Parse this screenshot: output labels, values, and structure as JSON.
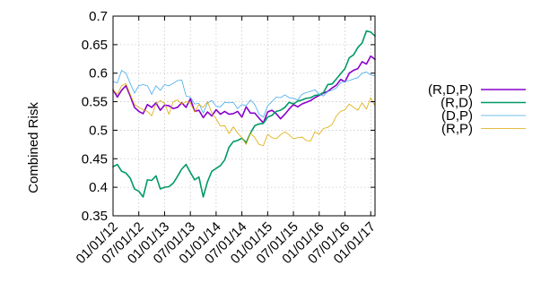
{
  "chart_data": {
    "type": "line",
    "title": "",
    "xlabel": "",
    "ylabel": "Combined Risk",
    "ylim": [
      0.35,
      0.7
    ],
    "yticks": [
      0.35,
      0.4,
      0.45,
      0.5,
      0.55,
      0.6,
      0.65,
      0.7
    ],
    "ytick_labels": [
      "0.35",
      "0.4",
      "0.45",
      "0.5",
      "0.55",
      "0.6",
      "0.65",
      "0.7"
    ],
    "x": [
      "2012-01",
      "2012-02",
      "2012-03",
      "2012-04",
      "2012-05",
      "2012-06",
      "2012-07",
      "2012-08",
      "2012-09",
      "2012-10",
      "2012-11",
      "2012-12",
      "2013-01",
      "2013-02",
      "2013-03",
      "2013-04",
      "2013-05",
      "2013-06",
      "2013-07",
      "2013-08",
      "2013-09",
      "2013-10",
      "2013-11",
      "2013-12",
      "2014-01",
      "2014-02",
      "2014-03",
      "2014-04",
      "2014-05",
      "2014-06",
      "2014-07",
      "2014-08",
      "2014-09",
      "2014-10",
      "2014-11",
      "2014-12",
      "2015-01",
      "2015-02",
      "2015-03",
      "2015-04",
      "2015-05",
      "2015-06",
      "2015-07",
      "2015-08",
      "2015-09",
      "2015-10",
      "2015-11",
      "2015-12",
      "2016-01",
      "2016-02",
      "2016-03",
      "2016-04",
      "2016-05",
      "2016-06",
      "2016-07",
      "2016-08",
      "2016-09",
      "2016-10",
      "2016-11",
      "2016-12",
      "2017-01",
      "2017-02"
    ],
    "xlim": [
      "2012-01",
      "2017-02"
    ],
    "xticks": [
      "2012-01",
      "2012-07",
      "2013-01",
      "2013-07",
      "2014-01",
      "2014-07",
      "2015-01",
      "2015-07",
      "2016-01",
      "2016-07",
      "2017-01"
    ],
    "xtick_labels": [
      "01/01/12",
      "07/01/12",
      "01/01/13",
      "07/01/13",
      "01/01/14",
      "07/01/14",
      "01/01/15",
      "07/01/15",
      "01/01/16",
      "07/01/16",
      "01/01/17"
    ],
    "grid": true,
    "legend_position": "right",
    "series": [
      {
        "name": "(R,D,P)",
        "color": "#8800cc",
        "width": 1.6,
        "values": [
          0.571,
          0.558,
          0.57,
          0.578,
          0.56,
          0.54,
          0.533,
          0.529,
          0.545,
          0.54,
          0.548,
          0.535,
          0.544,
          0.543,
          0.538,
          0.54,
          0.548,
          0.54,
          0.555,
          0.533,
          0.535,
          0.522,
          0.532,
          0.525,
          0.536,
          0.528,
          0.533,
          0.528,
          0.529,
          0.533,
          0.523,
          0.541,
          0.53,
          0.53,
          0.521,
          0.513,
          0.532,
          0.535,
          0.529,
          0.52,
          0.528,
          0.537,
          0.545,
          0.541,
          0.546,
          0.549,
          0.552,
          0.557,
          0.561,
          0.565,
          0.568,
          0.574,
          0.579,
          0.589,
          0.585,
          0.6,
          0.605,
          0.608,
          0.62,
          0.616,
          0.63,
          0.624
        ]
      },
      {
        "name": "(R,D)",
        "color": "#009966",
        "width": 1.6,
        "values": [
          0.436,
          0.44,
          0.428,
          0.425,
          0.416,
          0.397,
          0.393,
          0.383,
          0.413,
          0.412,
          0.42,
          0.397,
          0.4,
          0.401,
          0.407,
          0.419,
          0.432,
          0.44,
          0.426,
          0.413,
          0.418,
          0.383,
          0.41,
          0.428,
          0.433,
          0.438,
          0.448,
          0.47,
          0.48,
          0.482,
          0.486,
          0.478,
          0.495,
          0.508,
          0.511,
          0.512,
          0.523,
          0.526,
          0.533,
          0.535,
          0.54,
          0.549,
          0.546,
          0.551,
          0.553,
          0.556,
          0.557,
          0.561,
          0.562,
          0.566,
          0.58,
          0.581,
          0.59,
          0.599,
          0.608,
          0.627,
          0.632,
          0.645,
          0.653,
          0.674,
          0.672,
          0.665
        ]
      },
      {
        "name": "(D,P)",
        "color": "#44aaee",
        "width": 0.8,
        "values": [
          0.585,
          0.583,
          0.605,
          0.6,
          0.582,
          0.565,
          0.578,
          0.58,
          0.578,
          0.563,
          0.578,
          0.57,
          0.58,
          0.578,
          0.582,
          0.587,
          0.588,
          0.56,
          0.558,
          0.546,
          0.547,
          0.53,
          0.548,
          0.552,
          0.542,
          0.541,
          0.549,
          0.548,
          0.549,
          0.538,
          0.545,
          0.543,
          0.553,
          0.545,
          0.528,
          0.523,
          0.543,
          0.55,
          0.558,
          0.557,
          0.562,
          0.557,
          0.556,
          0.553,
          0.563,
          0.566,
          0.568,
          0.571,
          0.563,
          0.56,
          0.568,
          0.57,
          0.574,
          0.583,
          0.586,
          0.587,
          0.59,
          0.592,
          0.6,
          0.602,
          0.597,
          0.595
        ]
      },
      {
        "name": "(R,P)",
        "color": "#ddaa00",
        "width": 0.8,
        "values": [
          0.571,
          0.563,
          0.578,
          0.582,
          0.563,
          0.545,
          0.54,
          0.536,
          0.533,
          0.525,
          0.546,
          0.552,
          0.547,
          0.528,
          0.55,
          0.553,
          0.546,
          0.55,
          0.548,
          0.532,
          0.545,
          0.54,
          0.55,
          0.53,
          0.52,
          0.507,
          0.508,
          0.494,
          0.506,
          0.495,
          0.487,
          0.475,
          0.495,
          0.487,
          0.475,
          0.473,
          0.493,
          0.487,
          0.485,
          0.492,
          0.497,
          0.492,
          0.485,
          0.487,
          0.488,
          0.482,
          0.481,
          0.497,
          0.493,
          0.503,
          0.505,
          0.51,
          0.525,
          0.533,
          0.536,
          0.546,
          0.54,
          0.535,
          0.548,
          0.537,
          0.557,
          0.543
        ]
      }
    ]
  }
}
